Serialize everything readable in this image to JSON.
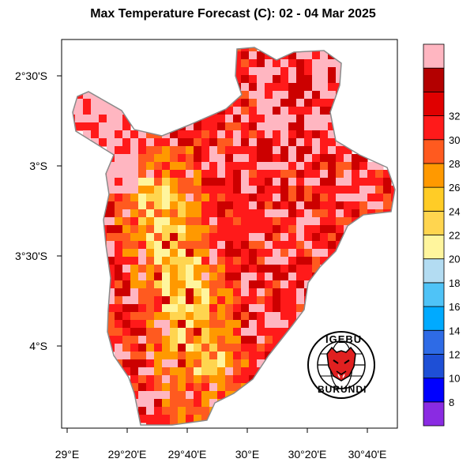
{
  "title": "Max Temperature Forecast (C): 02 - 04 Mar 2025",
  "axes": {
    "x_ticks": [
      "29°E",
      "29°20'E",
      "29°40'E",
      "30°E",
      "30°20'E",
      "30°40'E"
    ],
    "y_ticks": [
      "2°30'S",
      "3°S",
      "3°30'S",
      "4°S"
    ]
  },
  "colorbar": {
    "labels": [
      "8",
      "10",
      "12",
      "14",
      "16",
      "18",
      "20",
      "22",
      "24",
      "26",
      "28",
      "30",
      "32"
    ],
    "colors": [
      "#8a2be2",
      "#0000ff",
      "#1e4fd6",
      "#2e6be6",
      "#00aaff",
      "#4fc3f7",
      "#b3dcf2",
      "#fff59d",
      "#ffd54f",
      "#ffcc26",
      "#ff9900",
      "#ff5a1f",
      "#ff1a1a",
      "#e00000",
      "#b30000",
      "#ffb6c1"
    ]
  },
  "logo": {
    "top_text": "IGEBU",
    "bottom_text": "BURUNDI"
  },
  "colors": {
    "boundary": "#888888",
    "frame": "#000000"
  }
}
